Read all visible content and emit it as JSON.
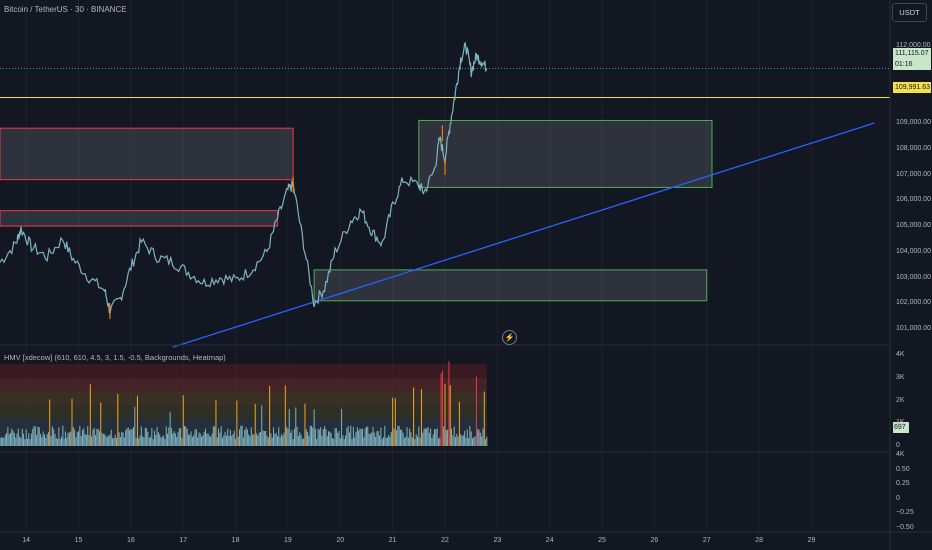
{
  "header": {
    "symbol_title": "Bitcoin / TetherUS · 30 · BINANCE",
    "currency_button": "USDT"
  },
  "price_scale": {
    "current_price": "111,115.07",
    "countdown": "01:16",
    "horizontal_line_price": "109,991.63",
    "ticks": [
      "112,000.00",
      "109,000.00",
      "108,000.00",
      "107,000.00",
      "106,000.00",
      "105,000.00",
      "104,000.00",
      "103,000.00",
      "102,000.00",
      "101,000.00"
    ]
  },
  "indicator": {
    "title": "HMV [xdecow] (610, 610, 4.5, 3, 1.5, -0.5, Backgrounds, Heatmap)",
    "current_value": "697",
    "ticks": [
      "4K",
      "3K",
      "2K",
      "1K",
      "0"
    ],
    "lower_pane_ticks": [
      "4K",
      "0.50",
      "0.25",
      "0",
      "−0.25",
      "−0.50"
    ]
  },
  "time_axis": {
    "labels": [
      "14",
      "15",
      "16",
      "17",
      "18",
      "19",
      "20",
      "21",
      "22",
      "23",
      "24",
      "25",
      "26",
      "27",
      "28",
      "29"
    ]
  },
  "chart_data": {
    "type": "line",
    "title": "Bitcoin / TetherUS · 30 · BINANCE",
    "x_range": [
      13.5,
      30.5
    ],
    "y_range": [
      100500,
      113000
    ],
    "price_path": [
      {
        "x": 13.5,
        "y": 103600
      },
      {
        "x": 13.8,
        "y": 104300
      },
      {
        "x": 13.9,
        "y": 104900
      },
      {
        "x": 14.1,
        "y": 104200
      },
      {
        "x": 14.4,
        "y": 103800
      },
      {
        "x": 14.7,
        "y": 104500
      },
      {
        "x": 14.9,
        "y": 103700
      },
      {
        "x": 15.2,
        "y": 103000
      },
      {
        "x": 15.5,
        "y": 102500
      },
      {
        "x": 15.6,
        "y": 101700
      },
      {
        "x": 15.8,
        "y": 102200
      },
      {
        "x": 16.0,
        "y": 103400
      },
      {
        "x": 16.2,
        "y": 104400
      },
      {
        "x": 16.5,
        "y": 103800
      },
      {
        "x": 16.8,
        "y": 103600
      },
      {
        "x": 17.1,
        "y": 103200
      },
      {
        "x": 17.4,
        "y": 102800
      },
      {
        "x": 17.7,
        "y": 103000
      },
      {
        "x": 18.0,
        "y": 102900
      },
      {
        "x": 18.3,
        "y": 103300
      },
      {
        "x": 18.6,
        "y": 104000
      },
      {
        "x": 18.8,
        "y": 105300
      },
      {
        "x": 19.0,
        "y": 106400
      },
      {
        "x": 19.1,
        "y": 106600
      },
      {
        "x": 19.3,
        "y": 104300
      },
      {
        "x": 19.5,
        "y": 102000
      },
      {
        "x": 19.7,
        "y": 102600
      },
      {
        "x": 19.9,
        "y": 104000
      },
      {
        "x": 20.2,
        "y": 105200
      },
      {
        "x": 20.4,
        "y": 105600
      },
      {
        "x": 20.6,
        "y": 104800
      },
      {
        "x": 20.8,
        "y": 104300
      },
      {
        "x": 21.0,
        "y": 105800
      },
      {
        "x": 21.2,
        "y": 106800
      },
      {
        "x": 21.5,
        "y": 106600
      },
      {
        "x": 21.6,
        "y": 106300
      },
      {
        "x": 21.8,
        "y": 107200
      },
      {
        "x": 21.9,
        "y": 108400
      },
      {
        "x": 22.0,
        "y": 107600
      },
      {
        "x": 22.1,
        "y": 109000
      },
      {
        "x": 22.2,
        "y": 110200
      },
      {
        "x": 22.3,
        "y": 111500
      },
      {
        "x": 22.4,
        "y": 112000
      },
      {
        "x": 22.5,
        "y": 111000
      },
      {
        "x": 22.6,
        "y": 111600
      },
      {
        "x": 22.7,
        "y": 111400
      },
      {
        "x": 22.8,
        "y": 111115
      }
    ],
    "zones": [
      {
        "color": "#f23645",
        "x0": 13.5,
        "x1": 19.1,
        "y0": 106800,
        "y1": 108800
      },
      {
        "color": "#f23645",
        "x0": 13.5,
        "x1": 18.8,
        "y0": 105000,
        "y1": 105600
      },
      {
        "color": "#4caf50",
        "x0": 21.5,
        "x1": 27.1,
        "y0": 106500,
        "y1": 109100
      },
      {
        "color": "#4caf50",
        "x0": 19.5,
        "x1": 27.0,
        "y0": 102100,
        "y1": 103300
      }
    ],
    "trendline": {
      "x0": 16.8,
      "y0": 100300,
      "x1": 30.2,
      "y1": 109000,
      "color": "#2962ff"
    },
    "hlines": [
      {
        "y": 111115.07,
        "color": "#26a69a"
      },
      {
        "y": 109991.63,
        "color": "#f4e04d"
      }
    ],
    "indicator_y_range": [
      0,
      4000
    ]
  }
}
